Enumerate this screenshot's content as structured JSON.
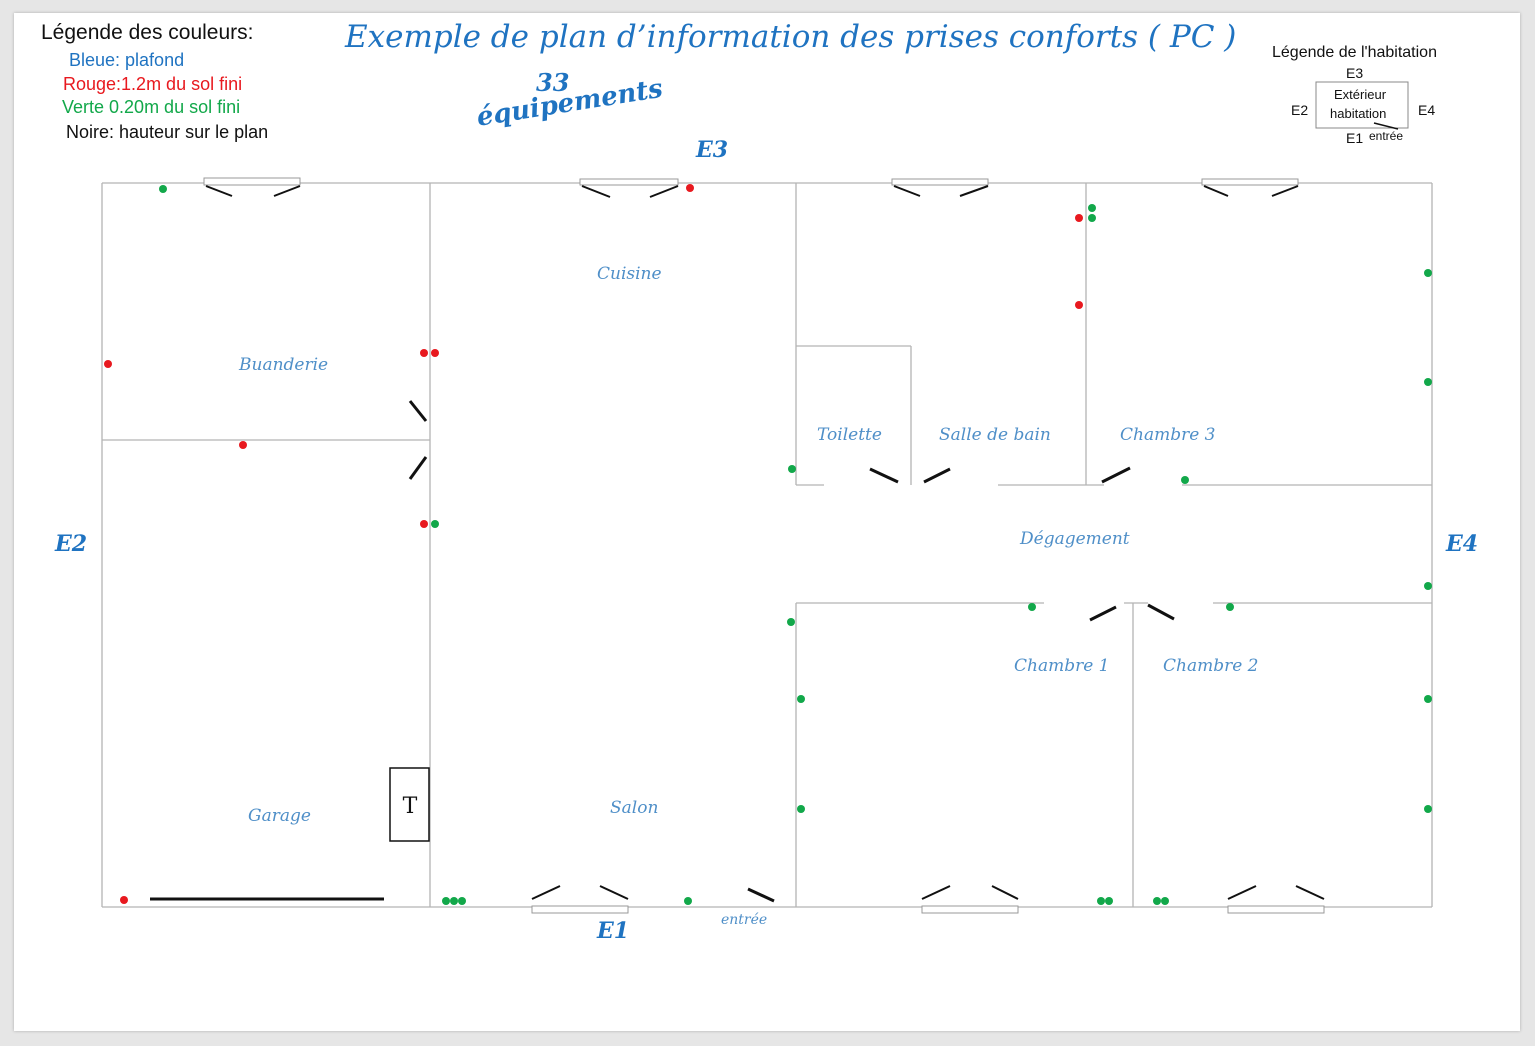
{
  "title": "Exemple de plan d’information des prises conforts ( PC )",
  "equipment": {
    "count": "33",
    "label": "équipements"
  },
  "color_legend": {
    "heading": "Légende des couleurs:",
    "items": [
      {
        "text": "Bleue: plafond",
        "color": "#1f73c1"
      },
      {
        "text": "Rouge:1.2m du sol fini",
        "color": "#e8191f"
      },
      {
        "text": "Verte 0.20m du sol fini",
        "color": "#12a84a"
      },
      {
        "text": "Noire: hauteur sur le plan",
        "color": "#111111"
      }
    ]
  },
  "habitation_legend": {
    "heading": "Légende de l'habitation",
    "top": "E3",
    "left": "E2",
    "right": "E4",
    "bottom": "E1",
    "box_line1": "Extérieur",
    "box_line2": "habitation",
    "entrance": "entrée"
  },
  "sides": {
    "e1": "E1",
    "e2": "E2",
    "e3": "E3",
    "e4": "E4"
  },
  "rooms": {
    "buanderie": "Buanderie",
    "cuisine": "Cuisine",
    "toilette": "Toilette",
    "salle_de_bain": "Salle de bain",
    "chambre3": "Chambre 3",
    "degagement": "Dégagement",
    "chambre1": "Chambre 1",
    "chambre2": "Chambre 2",
    "garage": "Garage",
    "salon": "Salon"
  },
  "entrance_label": "entrée",
  "panel_label": "T",
  "colors": {
    "red": "#e8191f",
    "green": "#12a84a",
    "wall": "#b4b4b4",
    "door": "#111111",
    "heading_blue": "#1f73c1"
  }
}
